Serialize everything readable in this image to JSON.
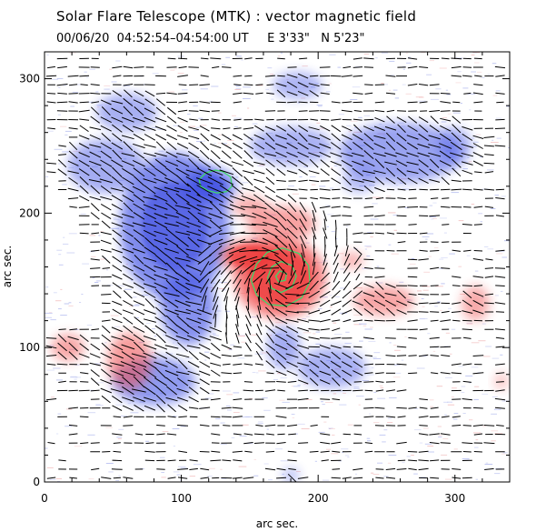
{
  "header": {
    "title": "Solar Flare Telescope (MTK) : vector magnetic field",
    "subtitle": "00/06/20  04:52:54–04:54:00 UT     E 3'33\"   N 5'23\""
  },
  "chart_data": {
    "type": "heatmap",
    "title": "Solar Flare Telescope (MTK) : vector magnetic field",
    "xlabel": "arc sec.",
    "ylabel": "arc sec.",
    "xlim": [
      0,
      340
    ],
    "ylim": [
      0,
      320
    ],
    "xticks": [
      0,
      100,
      200,
      300
    ],
    "yticks": [
      0,
      100,
      200,
      300
    ],
    "colors": {
      "positive": "#f05050",
      "negative": "#4b5be6",
      "contour": "#3fd76b",
      "vector": "#000000"
    },
    "positive_regions": [
      {
        "x": 172,
        "y": 152,
        "rx": 33,
        "ry": 30,
        "strength": 1.0
      },
      {
        "x": 150,
        "y": 168,
        "rx": 22,
        "ry": 12,
        "strength": 0.8
      },
      {
        "x": 173,
        "y": 192,
        "rx": 25,
        "ry": 13,
        "strength": 0.6
      },
      {
        "x": 150,
        "y": 205,
        "rx": 13,
        "ry": 8,
        "strength": 0.45
      },
      {
        "x": 248,
        "y": 135,
        "rx": 22,
        "ry": 11,
        "strength": 0.55
      },
      {
        "x": 225,
        "y": 165,
        "rx": 8,
        "ry": 6,
        "strength": 0.45
      },
      {
        "x": 315,
        "y": 133,
        "rx": 10,
        "ry": 13,
        "strength": 0.5
      },
      {
        "x": 62,
        "y": 90,
        "rx": 16,
        "ry": 21,
        "strength": 0.65
      },
      {
        "x": 17,
        "y": 100,
        "rx": 12,
        "ry": 10,
        "strength": 0.55
      },
      {
        "x": 334,
        "y": 75,
        "rx": 5,
        "ry": 6,
        "strength": 0.3
      }
    ],
    "negative_regions": [
      {
        "x": 95,
        "y": 190,
        "rx": 40,
        "ry": 55,
        "strength": 0.9
      },
      {
        "x": 120,
        "y": 220,
        "rx": 20,
        "ry": 14,
        "strength": 1.0
      },
      {
        "x": 105,
        "y": 130,
        "rx": 20,
        "ry": 28,
        "strength": 0.85
      },
      {
        "x": 80,
        "y": 75,
        "rx": 30,
        "ry": 18,
        "strength": 0.75
      },
      {
        "x": 45,
        "y": 235,
        "rx": 28,
        "ry": 20,
        "strength": 0.55
      },
      {
        "x": 60,
        "y": 275,
        "rx": 22,
        "ry": 14,
        "strength": 0.5
      },
      {
        "x": 180,
        "y": 250,
        "rx": 30,
        "ry": 14,
        "strength": 0.5
      },
      {
        "x": 185,
        "y": 295,
        "rx": 18,
        "ry": 10,
        "strength": 0.45
      },
      {
        "x": 260,
        "y": 245,
        "rx": 45,
        "ry": 22,
        "strength": 0.65
      },
      {
        "x": 230,
        "y": 225,
        "rx": 12,
        "ry": 10,
        "strength": 0.35
      },
      {
        "x": 175,
        "y": 100,
        "rx": 12,
        "ry": 16,
        "strength": 0.55
      },
      {
        "x": 210,
        "y": 85,
        "rx": 25,
        "ry": 15,
        "strength": 0.5
      },
      {
        "x": 300,
        "y": 250,
        "rx": 12,
        "ry": 14,
        "strength": 0.45
      },
      {
        "x": 180,
        "y": 5,
        "rx": 6,
        "ry": 5,
        "strength": 0.4
      }
    ],
    "contours": [
      {
        "points": [
          [
            113,
            225
          ],
          [
            118,
            230
          ],
          [
            125,
            232
          ],
          [
            130,
            231
          ],
          [
            136,
            227
          ],
          [
            137,
            220
          ],
          [
            133,
            216
          ],
          [
            126,
            215
          ],
          [
            119,
            217
          ],
          [
            114,
            220
          ]
        ]
      },
      {
        "points": [
          [
            151,
            150
          ],
          [
            155,
            162
          ],
          [
            163,
            171
          ],
          [
            174,
            174
          ],
          [
            186,
            170
          ],
          [
            193,
            161
          ],
          [
            194,
            149
          ],
          [
            188,
            137
          ],
          [
            177,
            131
          ],
          [
            164,
            132
          ],
          [
            155,
            139
          ]
        ]
      },
      {
        "points": [
          [
            163,
            152
          ],
          [
            166,
            160
          ],
          [
            173,
            164
          ],
          [
            181,
            161
          ],
          [
            184,
            153
          ],
          [
            181,
            145
          ],
          [
            173,
            141
          ],
          [
            166,
            144
          ]
        ]
      },
      {
        "points": [
          [
            169,
            153
          ],
          [
            172,
            157
          ],
          [
            177,
            155
          ],
          [
            176,
            150
          ],
          [
            171,
            149
          ]
        ]
      }
    ],
    "vector_grid": {
      "x_start": 5,
      "x_step": 8,
      "y_start": 3,
      "y_step": 6.5
    }
  }
}
